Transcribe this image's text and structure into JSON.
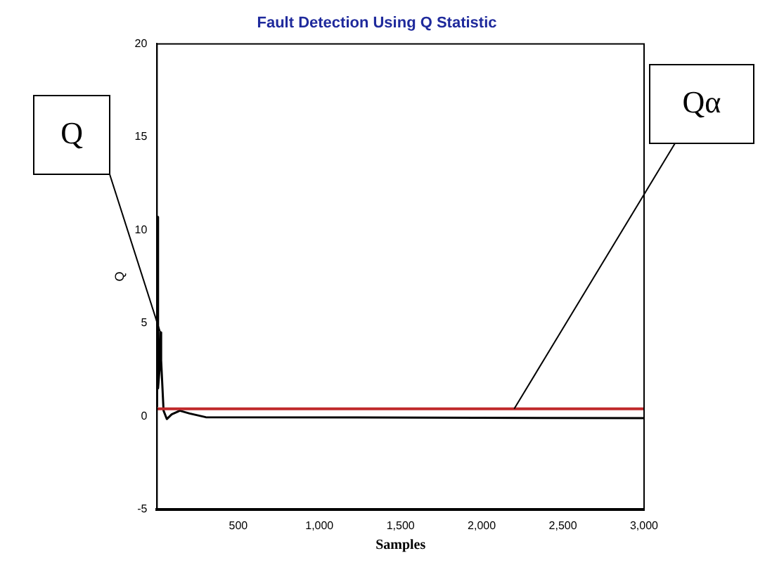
{
  "chart_data": {
    "type": "line",
    "title": "Fault Detection Using Q Statistic",
    "xlabel": "Samples",
    "ylabel": "Q",
    "x": [
      0,
      3,
      6,
      15,
      20,
      25,
      40,
      60,
      90,
      140,
      200,
      300,
      3000
    ],
    "series": [
      {
        "name": "Q",
        "color": "#000000",
        "values": [
          0.5,
          10.7,
          1.5,
          2.5,
          4.5,
          3,
          0.3,
          -0.15,
          0.1,
          0.3,
          0.15,
          -0.05,
          -0.1
        ]
      }
    ],
    "xlim": [
      0,
      3000
    ],
    "xticks": [
      500,
      {
        "value": 1000,
        "label": "1,000"
      },
      {
        "value": 1500,
        "label": "1,500"
      },
      {
        "value": 2000,
        "label": "2,000"
      },
      {
        "value": 2500,
        "label": "2,500"
      },
      {
        "value": 3000,
        "label": "3,000"
      }
    ],
    "ylim": [
      -5,
      20
    ],
    "yticks": [
      -5,
      0,
      5,
      10,
      15,
      20
    ],
    "ref_lines": [
      {
        "axis": "y",
        "value": 0.4,
        "color": "#c0292b"
      }
    ],
    "annotations": [
      {
        "text": "Qα",
        "x": 2200,
        "y": 0.4
      }
    ],
    "grid": false,
    "legend": false,
    "marker": "none",
    "line_style": "solid"
  }
}
